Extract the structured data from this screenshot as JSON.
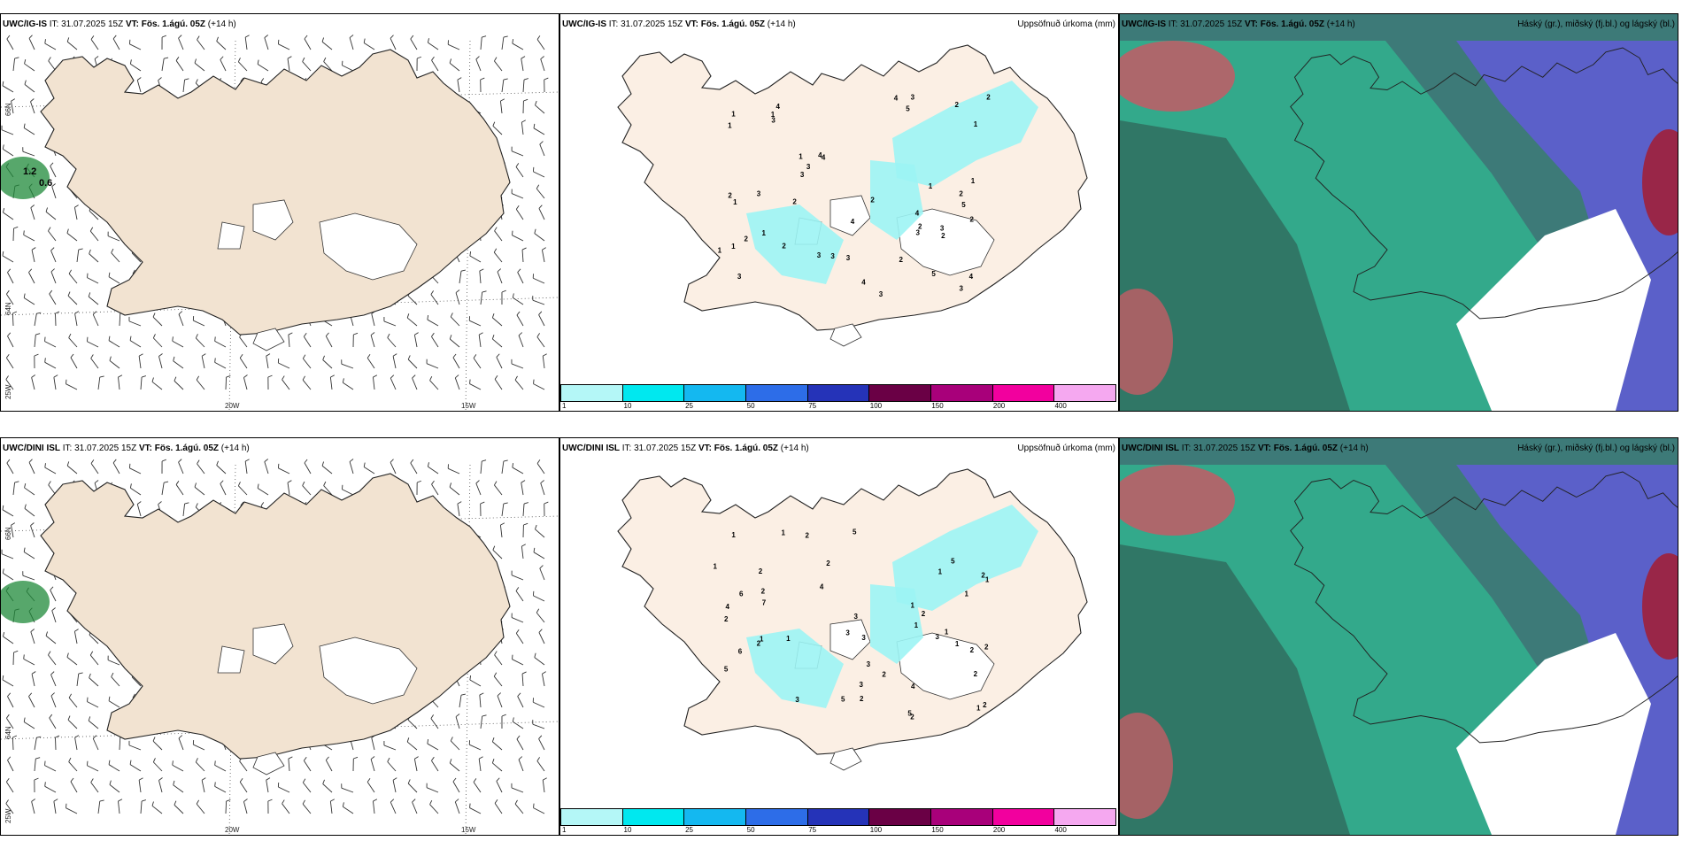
{
  "rows": [
    {
      "model": "UWC/IG-IS",
      "it_label": "IT:",
      "it_value": "31.07.2025 15Z",
      "vt_label": "VT:",
      "vt_value": "Fös. 1.ágú. 05Z",
      "lead": "(+14 h)",
      "lon_labels": [
        "20W",
        "15W"
      ],
      "lat_labels": [
        "66N",
        "64N",
        "25W"
      ],
      "wind_values": [
        "1.2",
        "0.6"
      ],
      "precip_numbers": [
        "4",
        "5",
        "3",
        "4",
        "4",
        "5",
        "1",
        "5",
        "1",
        "3",
        "1",
        "2",
        "1",
        "4",
        "3",
        "1",
        "4",
        "2",
        "4",
        "1",
        "2",
        "2",
        "3",
        "2",
        "4",
        "1",
        "2",
        "1",
        "3",
        "1",
        "4",
        "2",
        "3",
        "2",
        "2",
        "2",
        "3",
        "3",
        "3",
        "2",
        "1",
        "3",
        "3",
        "3",
        "3",
        "2",
        "1"
      ]
    },
    {
      "model": "UWC/DINI ISL",
      "it_label": "IT:",
      "it_value": "31.07.2025 15Z",
      "vt_label": "VT:",
      "vt_value": "Fös. 1.ágú. 05Z",
      "lead": "(+14 h)",
      "lon_labels": [
        "20W",
        "15W"
      ],
      "lat_labels": [
        "66N",
        "64N",
        "25W"
      ],
      "precip_numbers": [
        "2",
        "1",
        "5",
        "1",
        "2",
        "5",
        "1",
        "1",
        "3",
        "5",
        "5",
        "1",
        "2",
        "2",
        "3",
        "6",
        "6",
        "2",
        "1",
        "4",
        "3",
        "3",
        "2",
        "1",
        "2",
        "2",
        "2",
        "3",
        "3",
        "2",
        "7",
        "1",
        "2",
        "2",
        "1",
        "4",
        "2",
        "2",
        "3",
        "1",
        "5",
        "2",
        "1",
        "4",
        "1",
        "1"
      ]
    }
  ],
  "precip_title": "Uppsöfnuð úrkoma (mm)",
  "cloud_title": "Háský (gr.), miðský (fj.bl.) og lágský (bl.)",
  "colorbar": {
    "ticks": [
      "1",
      "10",
      "25",
      "50",
      "75",
      "100",
      "150",
      "200",
      "400"
    ],
    "colors": [
      "#b4f7f7",
      "#00e8ef",
      "#14b8f0",
      "#2d6de8",
      "#2533b8",
      "#6a0045",
      "#a8007a",
      "#f2009e",
      "#f5a8f0"
    ]
  },
  "colors": {
    "land": "#f2e3d1",
    "land_light": "#fbefe4",
    "glacier": "#ffffff",
    "precip_fill": "#9cf4f4",
    "low_cloud": "#5b60c9",
    "mid_cloud": "#2ccf9b",
    "high_cloud": "#c35c65"
  }
}
